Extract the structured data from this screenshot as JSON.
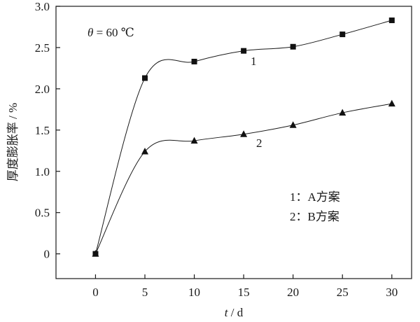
{
  "chart_data": {
    "type": "line",
    "x_label_var": "t",
    "x_label_unit": " / d",
    "y_label": "厚度膨胀率 / %",
    "x_ticks": [
      "0",
      "5",
      "10",
      "15",
      "20",
      "25",
      "30"
    ],
    "y_ticks": [
      "0",
      "0.5",
      "1.0",
      "1.5",
      "2.0",
      "2.5",
      "3.0"
    ],
    "xlim": [
      -4,
      32
    ],
    "ylim": [
      -0.3,
      3.0
    ],
    "grid": false,
    "x": [
      0,
      5,
      10,
      15,
      20,
      25,
      30
    ],
    "series": [
      {
        "label": "1",
        "marker": "square",
        "values": [
          0,
          2.13,
          2.33,
          2.46,
          2.51,
          2.66,
          2.83
        ]
      },
      {
        "label": "2",
        "marker": "triangle",
        "values": [
          0,
          1.24,
          1.37,
          1.45,
          1.56,
          1.71,
          1.82
        ]
      }
    ],
    "annotations": {
      "theta_var": "θ",
      "theta_value": " = 60 ℃",
      "legend_1": "1：A方案",
      "legend_2": "2：B方案"
    }
  }
}
